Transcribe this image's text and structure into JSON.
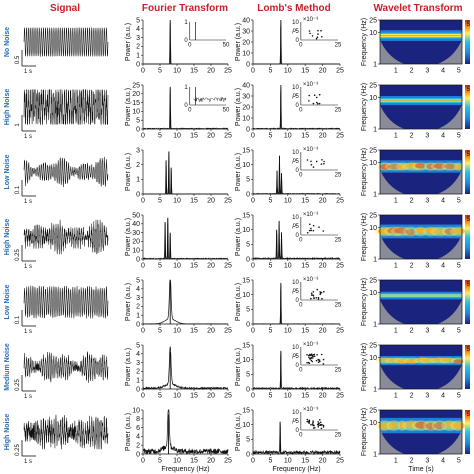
{
  "columns": [
    "Signal",
    "Fourier Transform",
    "Lomb's Method",
    "Wavelet Transform"
  ],
  "group_labels": [
    "No Noise",
    "High Noise",
    "Low Noise",
    "High Noise",
    "Low Noise",
    "Medium Noise",
    "High Noise"
  ],
  "axis_labels": {
    "power": "Power (a.u.)",
    "frequency": "Frequency (Hz)",
    "wavelet_frequency": "Frequency (Hz)",
    "time": "Time (s)",
    "inset_p": "p",
    "inset_exp": "×10⁻³"
  },
  "colorbar_tick": "5",
  "chart_data": [
    {
      "row": 0,
      "label": "No Noise",
      "type": "line",
      "signal": {
        "scale_value": "0.5",
        "scale_time": "1 s",
        "amp": 1.0,
        "noise": 0.0,
        "freq": 8,
        "modulated": false
      },
      "fourier": {
        "ylim": [
          0,
          5
        ],
        "yticks": [
          "0",
          "1",
          "2",
          "3",
          "4",
          "5"
        ],
        "xticks": [
          "0",
          "5",
          "10",
          "15",
          "20",
          "25"
        ],
        "peaks": [
          {
            "x": 8,
            "y": 5
          }
        ],
        "noise_floor": 0,
        "inset": {
          "yticks": [
            "0",
            "1"
          ],
          "xticks": [
            "0",
            "50"
          ],
          "peaks": [
            {
              "x": 8,
              "y": 1
            }
          ]
        }
      },
      "lomb": {
        "ylim": [
          0,
          40
        ],
        "yticks": [
          "0",
          "10",
          "20",
          "30",
          "40"
        ],
        "xticks": [
          "0",
          "5",
          "10",
          "15",
          "20",
          "25"
        ],
        "peaks": [
          {
            "x": 8,
            "y": 40
          }
        ],
        "noise_floor": 0,
        "inset": {
          "yticks": [
            "0",
            "5",
            "10"
          ],
          "xticks": [
            "0",
            "25"
          ],
          "scatter": "low"
        }
      },
      "wavelet": {
        "yticks": [
          "1",
          "10",
          "25"
        ],
        "band_freq": 8,
        "band_width": 0.35,
        "intensity": 1.0,
        "patchy": false
      }
    },
    {
      "row": 1,
      "label": "High Noise",
      "type": "line",
      "signal": {
        "scale_value": "1",
        "scale_time": "1 s",
        "amp": 1.0,
        "noise": 0.9,
        "freq": 8,
        "modulated": false
      },
      "fourier": {
        "ylim": [
          0,
          25
        ],
        "yticks": [
          "0",
          "5",
          "10",
          "15",
          "20",
          "25"
        ],
        "xticks": [
          "0",
          "5",
          "10",
          "15",
          "20",
          "25"
        ],
        "peaks": [
          {
            "x": 8,
            "y": 24
          }
        ],
        "noise_floor": 0.3,
        "inset": {
          "yticks": [
            "0",
            "1"
          ],
          "xticks": [
            "0",
            "50"
          ],
          "peaks": [
            {
              "x": 8,
              "y": 1
            }
          ],
          "noisy": true
        }
      },
      "lomb": {
        "ylim": [
          0,
          40
        ],
        "yticks": [
          "0",
          "10",
          "20",
          "30",
          "40"
        ],
        "xticks": [
          "0",
          "5",
          "10",
          "15",
          "20",
          "25"
        ],
        "peaks": [
          {
            "x": 8,
            "y": 40
          }
        ],
        "noise_floor": 0.3,
        "inset": {
          "yticks": [
            "0",
            "5",
            "10"
          ],
          "xticks": [
            "0",
            "25"
          ],
          "scatter": "low"
        }
      },
      "wavelet": {
        "yticks": [
          "1",
          "10",
          "25"
        ],
        "band_freq": 8,
        "band_width": 0.3,
        "intensity": 0.6,
        "patchy": false
      }
    },
    {
      "row": 2,
      "label": "Low Noise",
      "type": "line",
      "signal": {
        "scale_value": "0.1",
        "scale_time": "1 s",
        "amp": 1.0,
        "noise": 0.15,
        "freq": 8,
        "modulated": true
      },
      "fourier": {
        "ylim": [
          0,
          3
        ],
        "yticks": [
          "0",
          "1",
          "2",
          "3"
        ],
        "xticks": [
          "0",
          "5",
          "10",
          "15",
          "20",
          "25"
        ],
        "peaks": [
          {
            "x": 6.8,
            "y": 2.3
          },
          {
            "x": 7.6,
            "y": 2.9
          },
          {
            "x": 8.3,
            "y": 1.8
          }
        ],
        "noise_floor": 0
      },
      "lomb": {
        "ylim": [
          0,
          15
        ],
        "yticks": [
          "0",
          "5",
          "10",
          "15"
        ],
        "xticks": [
          "0",
          "5",
          "10",
          "15",
          "20",
          "25"
        ],
        "peaks": [
          {
            "x": 6.9,
            "y": 8
          },
          {
            "x": 7.6,
            "y": 13
          },
          {
            "x": 8.2,
            "y": 7
          }
        ],
        "noise_floor": 0.2,
        "inset": {
          "yticks": [
            "0",
            "5",
            "10"
          ],
          "xticks": [
            "0",
            "25"
          ],
          "scatter": "low"
        }
      },
      "wavelet": {
        "yticks": [
          "1",
          "10",
          "25"
        ],
        "band_freq": 7.5,
        "band_width": 0.4,
        "intensity": 0.9,
        "patchy": true
      }
    },
    {
      "row": 3,
      "label": "High Noise",
      "type": "line",
      "signal": {
        "scale_value": "0.25",
        "scale_time": "1 s",
        "amp": 1.0,
        "noise": 0.4,
        "freq": 8,
        "modulated": true
      },
      "fourier": {
        "ylim": [
          0,
          50
        ],
        "yticks": [
          "0",
          "10",
          "20",
          "30",
          "40",
          "50"
        ],
        "xticks": [
          "0",
          "5",
          "10",
          "15",
          "20",
          "25"
        ],
        "peaks": [
          {
            "x": 6.5,
            "y": 42
          },
          {
            "x": 7.3,
            "y": 47
          },
          {
            "x": 8.0,
            "y": 30
          }
        ],
        "noise_floor": 0.3
      },
      "lomb": {
        "ylim": [
          0,
          15
        ],
        "yticks": [
          "0",
          "5",
          "10",
          "15"
        ],
        "xticks": [
          "0",
          "5",
          "10",
          "15",
          "20",
          "25"
        ],
        "peaks": [
          {
            "x": 6.8,
            "y": 10
          },
          {
            "x": 7.5,
            "y": 13
          },
          {
            "x": 8.2,
            "y": 9
          }
        ],
        "noise_floor": 0.4,
        "inset": {
          "yticks": [
            "0",
            "5",
            "10"
          ],
          "xticks": [
            "0",
            "25"
          ],
          "scatter": "low"
        }
      },
      "wavelet": {
        "yticks": [
          "1",
          "10",
          "25"
        ],
        "band_freq": 7.5,
        "band_width": 0.45,
        "intensity": 0.75,
        "patchy": true
      }
    },
    {
      "row": 4,
      "label": "Low Noise",
      "type": "line",
      "signal": {
        "scale_value": "0.1",
        "scale_time": "1 s",
        "amp": 1.0,
        "noise": 0.15,
        "freq": 8,
        "modulated": false
      },
      "fourier": {
        "ylim": [
          0,
          5
        ],
        "yticks": [
          "0",
          "1",
          "2",
          "3",
          "4",
          "5"
        ],
        "xticks": [
          "0",
          "5",
          "10",
          "15",
          "20",
          "25"
        ],
        "peaks": [
          {
            "x": 8,
            "y": 4.8
          }
        ],
        "noise_floor": 0.1,
        "broad": true
      },
      "lomb": {
        "ylim": [
          0,
          15
        ],
        "yticks": [
          "0",
          "5",
          "10",
          "15"
        ],
        "xticks": [
          "0",
          "5",
          "10",
          "15",
          "20",
          "25"
        ],
        "peaks": [
          {
            "x": 8,
            "y": 14
          }
        ],
        "noise_floor": 0.1,
        "inset": {
          "yticks": [
            "0",
            "5",
            "10"
          ],
          "xticks": [
            "0",
            "25"
          ],
          "scatter": "mid"
        }
      },
      "wavelet": {
        "yticks": [
          "1",
          "10",
          "25"
        ],
        "band_freq": 8,
        "band_width": 0.25,
        "intensity": 0.7,
        "patchy": false
      }
    },
    {
      "row": 5,
      "label": "Medium Noise",
      "type": "line",
      "signal": {
        "scale_value": "0.25",
        "scale_time": "1 s",
        "amp": 1.0,
        "noise": 0.3,
        "freq": 8,
        "modulated": true
      },
      "fourier": {
        "ylim": [
          0,
          5
        ],
        "yticks": [
          "0",
          "1",
          "2",
          "3",
          "4",
          "5"
        ],
        "xticks": [
          "0",
          "5",
          "10",
          "15",
          "20",
          "25"
        ],
        "peaks": [
          {
            "x": 8,
            "y": 4.2
          }
        ],
        "noise_floor": 0.6,
        "broad": true
      },
      "lomb": {
        "ylim": [
          0,
          15
        ],
        "yticks": [
          "0",
          "5",
          "10",
          "15"
        ],
        "xticks": [
          "0",
          "5",
          "10",
          "15",
          "20",
          "25"
        ],
        "peaks": [
          {
            "x": 8,
            "y": 13
          }
        ],
        "noise_floor": 0.5,
        "inset": {
          "yticks": [
            "0",
            "5",
            "10"
          ],
          "xticks": [
            "0",
            "25"
          ],
          "scatter": "high"
        }
      },
      "wavelet": {
        "yticks": [
          "1",
          "10",
          "25"
        ],
        "band_freq": 8,
        "band_width": 0.3,
        "intensity": 0.65,
        "patchy": true
      }
    },
    {
      "row": 6,
      "label": "High Noise",
      "type": "line",
      "signal": {
        "scale_value": "0.25",
        "scale_time": "1 s",
        "amp": 1.0,
        "noise": 0.6,
        "freq": 8,
        "modulated": true
      },
      "fourier": {
        "ylim": [
          0,
          10
        ],
        "yticks": [
          "0",
          "2",
          "4",
          "6",
          "8",
          "10"
        ],
        "xticks": [
          "0",
          "5",
          "10",
          "15",
          "20",
          "25"
        ],
        "peaks": [
          {
            "x": 7.5,
            "y": 9
          }
        ],
        "noise_floor": 2.0,
        "broad": true
      },
      "lomb": {
        "ylim": [
          0,
          15
        ],
        "yticks": [
          "0",
          "5",
          "10",
          "15"
        ],
        "xticks": [
          "0",
          "5",
          "10",
          "15",
          "20",
          "25"
        ],
        "peaks": [
          {
            "x": 7.8,
            "y": 11
          }
        ],
        "noise_floor": 1.2,
        "inset": {
          "yticks": [
            "0",
            "5",
            "10"
          ],
          "xticks": [
            "0",
            "25"
          ],
          "scatter": "high"
        }
      },
      "wavelet": {
        "yticks": [
          "1",
          "10",
          "25"
        ],
        "band_freq": 8,
        "band_width": 0.5,
        "intensity": 0.8,
        "patchy": true
      }
    }
  ]
}
